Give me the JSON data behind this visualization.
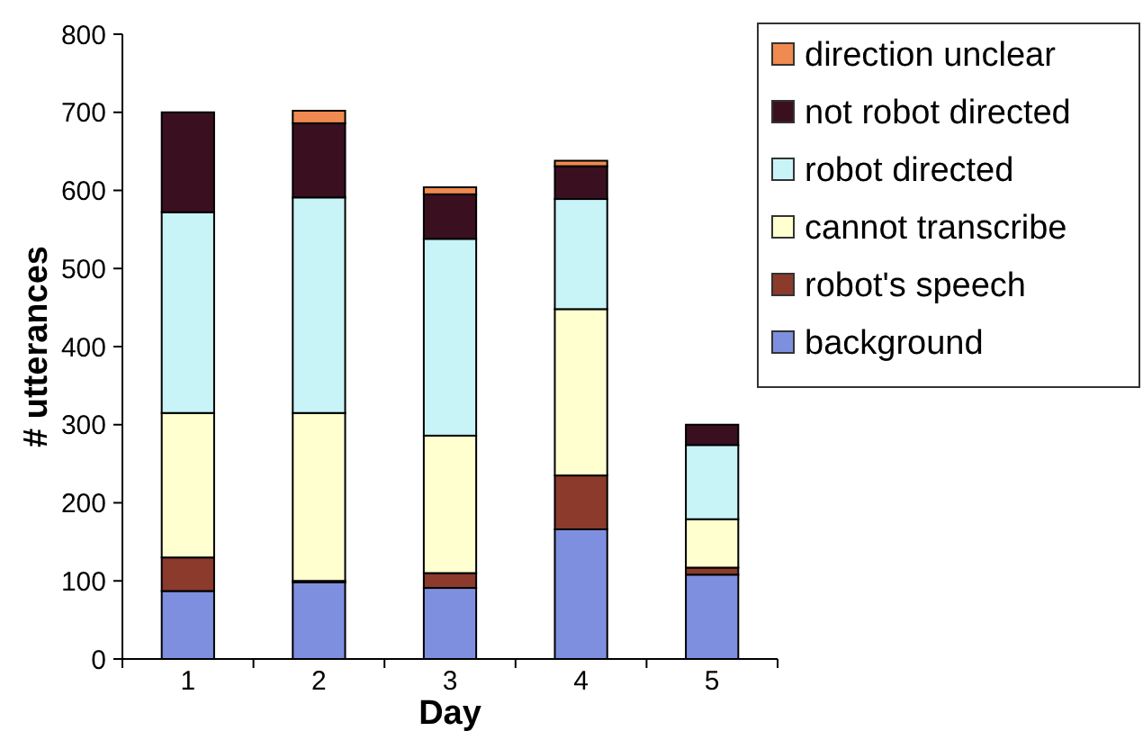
{
  "chart_data": {
    "type": "bar",
    "stacked": true,
    "xlabel": "Day",
    "ylabel": "# utterances",
    "categories": [
      "1",
      "2",
      "3",
      "4",
      "5"
    ],
    "series": [
      {
        "name": "background",
        "color": "#7f8fe0",
        "values": [
          87,
          98,
          91,
          166,
          108
        ]
      },
      {
        "name": "robot's speech",
        "color": "#8b3a2c",
        "values": [
          43,
          2,
          19,
          69,
          9
        ]
      },
      {
        "name": "cannot transcribe",
        "color": "#ffffd0",
        "values": [
          185,
          215,
          176,
          213,
          62
        ]
      },
      {
        "name": "robot directed",
        "color": "#c8f4f8",
        "values": [
          257,
          276,
          252,
          141,
          95
        ]
      },
      {
        "name": "not robot directed",
        "color": "#3a1020",
        "values": [
          128,
          95,
          57,
          42,
          26
        ]
      },
      {
        "name": "direction unclear",
        "color": "#f08a50",
        "values": [
          0,
          16,
          9,
          7,
          0
        ]
      }
    ],
    "ylim": [
      0,
      800
    ],
    "yticks": [
      0,
      100,
      200,
      300,
      400,
      500,
      600,
      700,
      800
    ],
    "grid": false,
    "legend": "top right"
  }
}
